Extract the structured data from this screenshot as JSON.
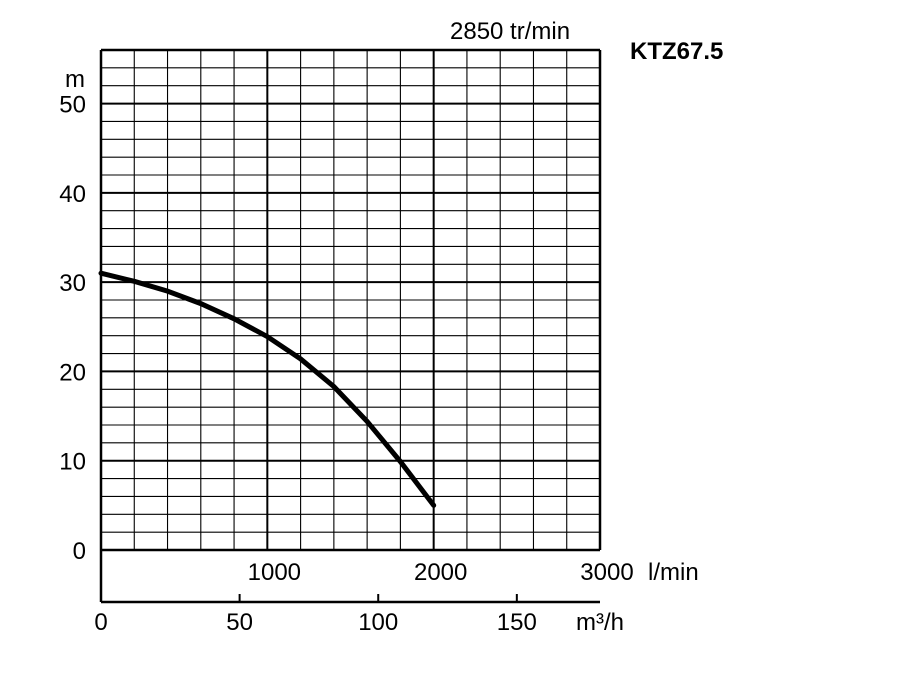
{
  "chart_data": {
    "type": "line",
    "title": "KTZ67.5",
    "speed_label": "2850 tr/min",
    "ylabel": "m",
    "ylim": [
      0,
      56
    ],
    "yticks": [
      "0",
      "10",
      "20",
      "30",
      "40",
      "50"
    ],
    "x_lpm_label": "l/min",
    "x_lpm_ticks": [
      "1000",
      "2000",
      "3000"
    ],
    "xlim_lpm": [
      0,
      3000
    ],
    "x_m3h_label": "m³/h",
    "x_m3h_ticks": [
      "0",
      "50",
      "100",
      "150"
    ],
    "xlim_m3h": [
      0,
      180
    ],
    "grid": true,
    "series": [
      {
        "x": [
          0,
          200,
          400,
          600,
          800,
          1000,
          1200,
          1400,
          1600,
          1800,
          2000
        ],
        "y": [
          31,
          30.1,
          29,
          27.6,
          25.9,
          23.9,
          21.4,
          18.3,
          14.4,
          9.9,
          5
        ]
      }
    ]
  }
}
